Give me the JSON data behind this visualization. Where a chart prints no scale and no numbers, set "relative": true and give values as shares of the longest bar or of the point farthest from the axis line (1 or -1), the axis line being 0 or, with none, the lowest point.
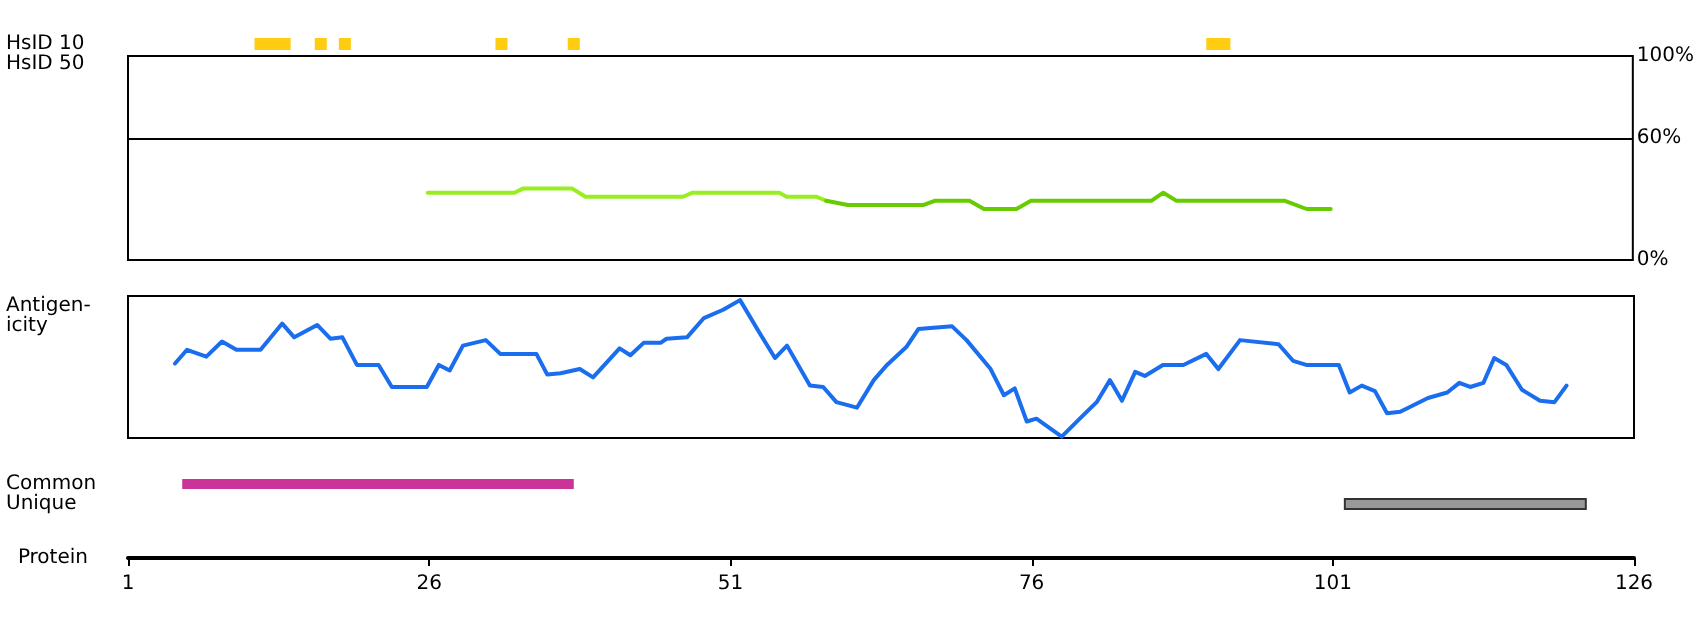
{
  "chart_data": [
    {
      "type": "bar",
      "orientation": "horizontal",
      "categories": [
        "HsID 10",
        "HsID 50"
      ],
      "xlim": [
        1,
        126
      ],
      "tick_labels": "y",
      "series": [
        {
          "color": "#ffcc11",
          "values": [
            3,
            null
          ],
          "base": [
            11.5,
            null
          ]
        },
        {
          "color": "#ffcc11",
          "values": [
            1,
            null
          ],
          "base": [
            16.5,
            null
          ]
        },
        {
          "color": "#ffcc11",
          "values": [
            1,
            null
          ],
          "base": [
            18.5,
            null
          ]
        },
        {
          "color": "#ffcc11",
          "values": [
            1,
            null
          ],
          "base": [
            31.5,
            null
          ]
        },
        {
          "color": "#ffcc11",
          "values": [
            1,
            null
          ],
          "base": [
            37.5,
            null
          ]
        },
        {
          "color": "#ffcc11",
          "values": [
            2,
            null
          ],
          "base": [
            90.5,
            null
          ]
        }
      ]
    },
    {
      "type": "line",
      "xlim": [
        1,
        126
      ],
      "ylim": [
        0,
        100
      ],
      "yticks": [
        {
          "value": 0,
          "label": "0%"
        },
        {
          "value": 60,
          "label": "60%"
        },
        {
          "value": 100,
          "label": "100%"
        }
      ],
      "tick_labels": "y",
      "grid": false,
      "ref_lines": [
        {
          "axis": "y",
          "value": 60,
          "color": "#000000"
        }
      ],
      "series": [
        {
          "color": "#99ee22",
          "x": [
            25.9,
            33.1,
            33.8,
            37.9,
            39.0,
            47.1,
            47.9,
            55.1,
            55.7,
            58.2,
            59.0
          ],
          "values": [
            33,
            33,
            35,
            35,
            31,
            31,
            33,
            33,
            31,
            31,
            29
          ]
        },
        {
          "color": "#66cc00",
          "x": [
            59.0,
            60.8,
            67.1,
            68.0,
            70.9,
            72.1,
            74.8,
            76.0,
            86.0,
            87.0,
            88.1,
            97.1,
            98.9,
            100.9
          ],
          "values": [
            29,
            27,
            27,
            29,
            29,
            25,
            25,
            29,
            29,
            33,
            29,
            29,
            25,
            25
          ]
        }
      ]
    },
    {
      "type": "line",
      "relative": true,
      "ylabel": "Antigen-icity",
      "xlim": [
        1,
        126
      ],
      "tick_labels": false,
      "series": [
        {
          "color": "#1a6eee",
          "x": [
            4.9,
            5.9,
            7.5,
            8.8,
            10.0,
            12.0,
            13.8,
            14.8,
            16.7,
            17.8,
            18.8,
            20.0,
            21.8,
            22.9,
            25.8,
            26.8,
            27.7,
            28.8,
            30.7,
            31.9,
            34.9,
            35.8,
            36.9,
            38.5,
            39.6,
            41.8,
            42.7,
            43.8,
            45.2,
            45.7,
            47.4,
            48.8,
            50.4,
            51.8,
            53.5,
            54.7,
            55.7,
            57.6,
            58.7,
            59.8,
            61.5,
            62.9,
            64.0,
            65.6,
            66.6,
            69.4,
            70.6,
            72.6,
            73.7,
            74.6,
            75.6,
            76.4,
            78.5,
            80.0,
            81.4,
            82.5,
            83.5,
            84.6,
            85.4,
            86.9,
            88.6,
            90.5,
            91.5,
            93.3,
            96.5,
            97.7,
            98.8,
            101.5,
            102.4,
            103.4,
            104.5,
            105.5,
            106.6,
            108.9,
            110.5,
            111.5,
            112.4,
            113.5,
            114.4,
            115.4,
            116.7,
            118.2,
            119.4,
            120.4
          ],
          "values": [
            0.54,
            0.64,
            0.59,
            0.7,
            0.64,
            0.64,
            0.83,
            0.73,
            0.82,
            0.72,
            0.73,
            0.53,
            0.53,
            0.37,
            0.37,
            0.53,
            0.49,
            0.67,
            0.71,
            0.61,
            0.61,
            0.46,
            0.47,
            0.5,
            0.44,
            0.65,
            0.6,
            0.69,
            0.69,
            0.72,
            0.73,
            0.87,
            0.93,
            1,
            0.75,
            0.58,
            0.67,
            0.38,
            0.37,
            0.26,
            0.22,
            0.42,
            0.53,
            0.66,
            0.79,
            0.81,
            0.71,
            0.5,
            0.31,
            0.36,
            0.12,
            0.14,
            0.01,
            0.14,
            0.26,
            0.42,
            0.27,
            0.48,
            0.45,
            0.53,
            0.53,
            0.61,
            0.5,
            0.71,
            0.68,
            0.56,
            0.53,
            0.53,
            0.33,
            0.38,
            0.34,
            0.18,
            0.19,
            0.29,
            0.33,
            0.4,
            0.37,
            0.4,
            0.58,
            0.53,
            0.35,
            0.27,
            0.26,
            0.38
          ]
        }
      ]
    },
    {
      "type": "bar",
      "orientation": "horizontal",
      "categories": [
        "Common",
        "Unique"
      ],
      "xlabel": "Protein",
      "xlim": [
        1,
        126
      ],
      "xticks": [
        1,
        26,
        51,
        76,
        101,
        126
      ],
      "series": [
        {
          "colors": [
            "#cc3399",
            "#999999"
          ],
          "values": [
            32.5,
            20
          ],
          "base": [
            5.5,
            102
          ]
        }
      ]
    }
  ]
}
